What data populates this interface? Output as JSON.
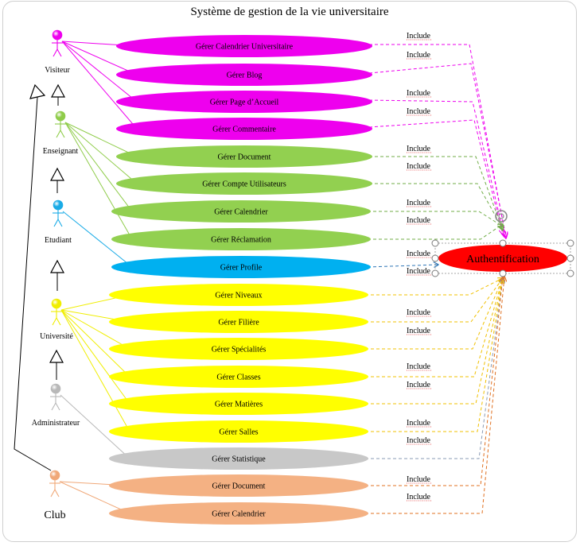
{
  "title": "Système de gestion de la vie universitaire",
  "include_label": "Include",
  "actors": [
    {
      "id": "visiteur",
      "label": "Visiteur",
      "color": "#ee00ee"
    },
    {
      "id": "enseignant",
      "label": "Enseignant",
      "color": "#8fcc4a"
    },
    {
      "id": "etudiant",
      "label": "Etudiant",
      "color": "#1aabe6"
    },
    {
      "id": "universite",
      "label": "Université",
      "color": "#f0ee00"
    },
    {
      "id": "administrateur",
      "label": "Administrateur",
      "color": "#b8b8b8"
    },
    {
      "id": "club",
      "label": "Club",
      "color": "#f0a878"
    }
  ],
  "use_cases": [
    {
      "label": "Gérer Calendrier Universitaire",
      "color": "#ee00ee",
      "actors": [
        "visiteur"
      ]
    },
    {
      "label": "Gérer Blog",
      "color": "#ee00ee",
      "actors": [
        "visiteur"
      ]
    },
    {
      "label": "Gérer Page d’Accueil",
      "color": "#ee00ee",
      "actors": [
        "visiteur"
      ]
    },
    {
      "label": "Gérer Commentaire",
      "color": "#ee00ee",
      "actors": [
        "visiteur"
      ]
    },
    {
      "label": "Gérer Document",
      "color": "#92d050",
      "actors": [
        "enseignant"
      ]
    },
    {
      "label": "Gérer Compte Utilisateurs",
      "color": "#92d050",
      "actors": [
        "enseignant"
      ]
    },
    {
      "label": "Gérer Calendrier",
      "color": "#92d050",
      "actors": [
        "enseignant"
      ]
    },
    {
      "label": "Gérer Réclamation",
      "color": "#92d050",
      "actors": [
        "enseignant"
      ]
    },
    {
      "label": "Gérer Profile",
      "color": "#00b0f0",
      "actors": [
        "etudiant"
      ]
    },
    {
      "label": "Gérer Niveaux",
      "color": "#ffff00",
      "actors": [
        "universite"
      ]
    },
    {
      "label": "Gérer Filière",
      "color": "#ffff00",
      "actors": [
        "universite"
      ]
    },
    {
      "label": "Gérer Spécialités",
      "color": "#ffff00",
      "actors": [
        "universite"
      ]
    },
    {
      "label": "Gérer Classes",
      "color": "#ffff00",
      "actors": [
        "universite"
      ]
    },
    {
      "label": "Gérer Matières",
      "color": "#ffff00",
      "actors": [
        "universite"
      ]
    },
    {
      "label": "Gérer Salles",
      "color": "#ffff00",
      "actors": [
        "universite"
      ]
    },
    {
      "label": "Gérer Statistique",
      "color": "#c8c8c8",
      "actors": [
        "administrateur"
      ]
    },
    {
      "label": "Gérer Document",
      "color": "#f4b183",
      "actors": [
        "club"
      ]
    },
    {
      "label": "Gérer Calendrier",
      "color": "#f4b183",
      "actors": [
        "club"
      ]
    }
  ],
  "include_colors": [
    "#ee00ee",
    "#ee00ee",
    "#ee00ee",
    "#ee00ee",
    "#70ad47",
    "#70ad47",
    "#70ad47",
    "#70ad47",
    "#2e75b6",
    "#f0c000",
    "#f0c000",
    "#f0c000",
    "#f0c000",
    "#f0c000",
    "#f0c000",
    "#8a9bb5",
    "#e07020",
    "#e07020"
  ],
  "authentication": {
    "label": "Authentification",
    "color": "#ff0000"
  }
}
